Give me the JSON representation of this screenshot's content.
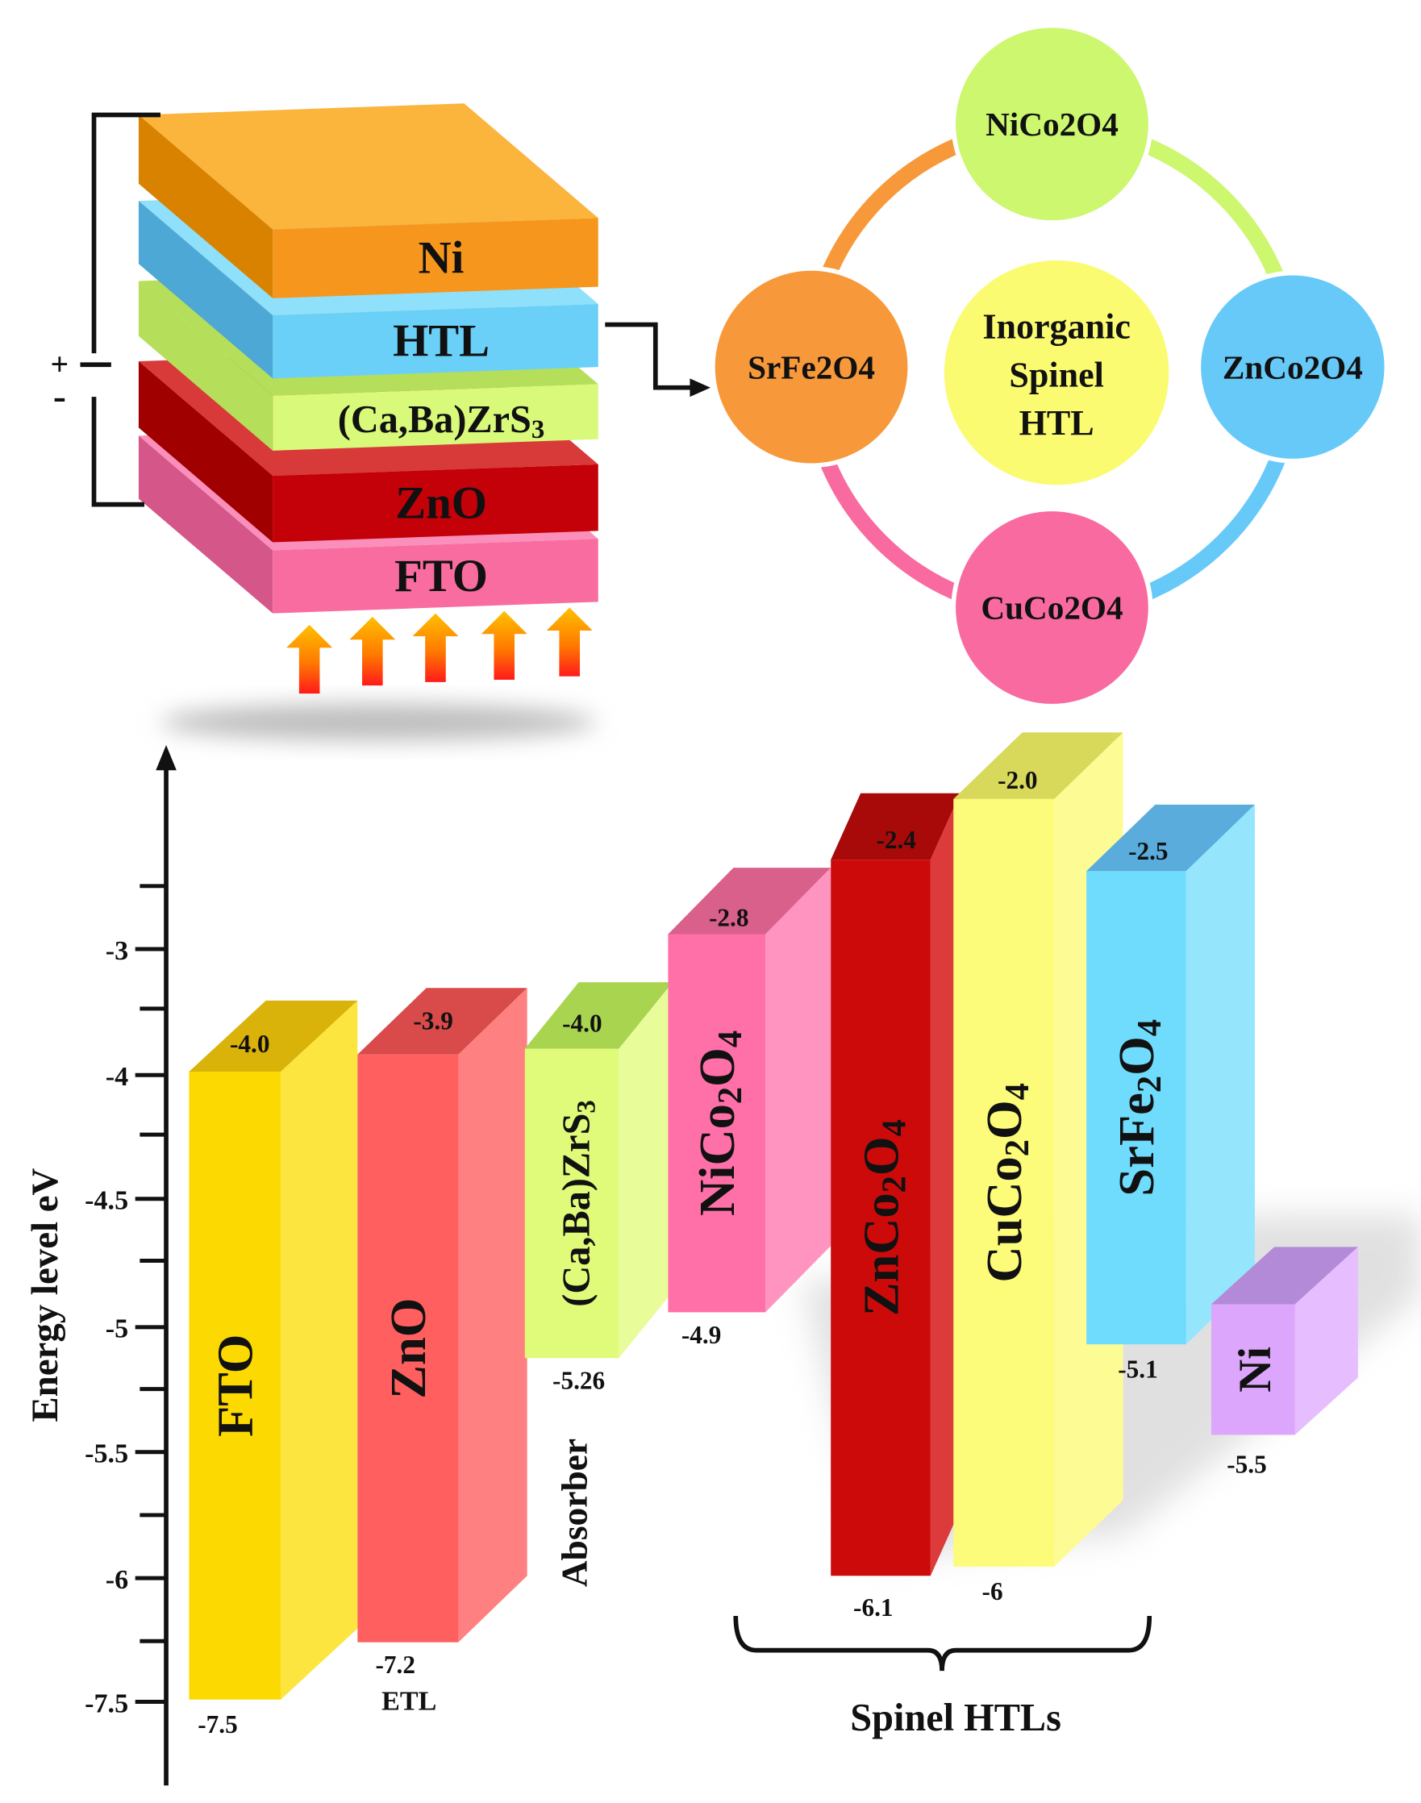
{
  "device_stack": {
    "layers": [
      {
        "label": "Ni",
        "color": "#f7961c"
      },
      {
        "label": "HTL",
        "color": "#6ad0f8"
      },
      {
        "label": "(Ca,Ba)ZrS3",
        "color": "#d8f97a"
      },
      {
        "label": "ZnO",
        "color": "#c40008"
      },
      {
        "label": "FTO",
        "color": "#f96ca0"
      }
    ],
    "terminal_plus": "+",
    "terminal_minus": "-"
  },
  "spinel_cycle": {
    "center": [
      "Inorganic",
      "Spinel",
      "HTL"
    ],
    "nodes": [
      {
        "label": "NiCo2O4",
        "color": "#ccf76e"
      },
      {
        "label": "ZnCo2O4",
        "color": "#66c9f8"
      },
      {
        "label": "CuCo2O4",
        "color": "#f86aa0"
      },
      {
        "label": "SrFe2O4",
        "color": "#f7993a"
      }
    ],
    "center_color": "#fbfb72"
  },
  "chart_data": {
    "type": "bar",
    "subtype": "floating-band-diagram",
    "ylabel": "Energy level eV",
    "y_tick_labels": [
      "-3",
      "-4",
      "-4.5",
      "-5",
      "-5.5",
      "-6",
      "-7.5"
    ],
    "bars": [
      {
        "name": "FTO",
        "top": -4.0,
        "bottom": -7.5,
        "top_label": "-4.0",
        "bottom_label": "-7.5",
        "role": ""
      },
      {
        "name": "ZnO",
        "top": -3.9,
        "bottom": -7.2,
        "top_label": "-3.9",
        "bottom_label": "-7.2",
        "role": "ETL"
      },
      {
        "name": "(Ca,Ba)ZrS3",
        "top": -4.0,
        "bottom": -5.26,
        "top_label": "-4.0",
        "bottom_label": "-5.26",
        "role": "Absorber"
      },
      {
        "name": "NiCo2O4",
        "top": -2.8,
        "bottom": -4.9,
        "top_label": "-2.8",
        "bottom_label": "-4.9",
        "role": ""
      },
      {
        "name": "ZnCo2O4",
        "top": -2.4,
        "bottom": -6.1,
        "top_label": "-2.4",
        "bottom_label": "-6.1",
        "role": ""
      },
      {
        "name": "CuCo2O4",
        "top": -2.0,
        "bottom": -6.0,
        "top_label": "-2.0",
        "bottom_label": "-6",
        "role": ""
      },
      {
        "name": "SrFe2O4",
        "top": -2.5,
        "bottom": -5.1,
        "top_label": "-2.5",
        "bottom_label": "-5.1",
        "role": ""
      },
      {
        "name": "Ni",
        "top": null,
        "bottom": -5.5,
        "top_label": "",
        "bottom_label": "-5.5",
        "role": ""
      }
    ],
    "group_annotation": "Spinel HTLs",
    "colors": [
      "#fcd900",
      "#ff5f5f",
      "#e0fb7a",
      "#ff6fa8",
      "#cc0a0a",
      "#fcfb7a",
      "#6fdcfd",
      "#dba6fc"
    ]
  }
}
